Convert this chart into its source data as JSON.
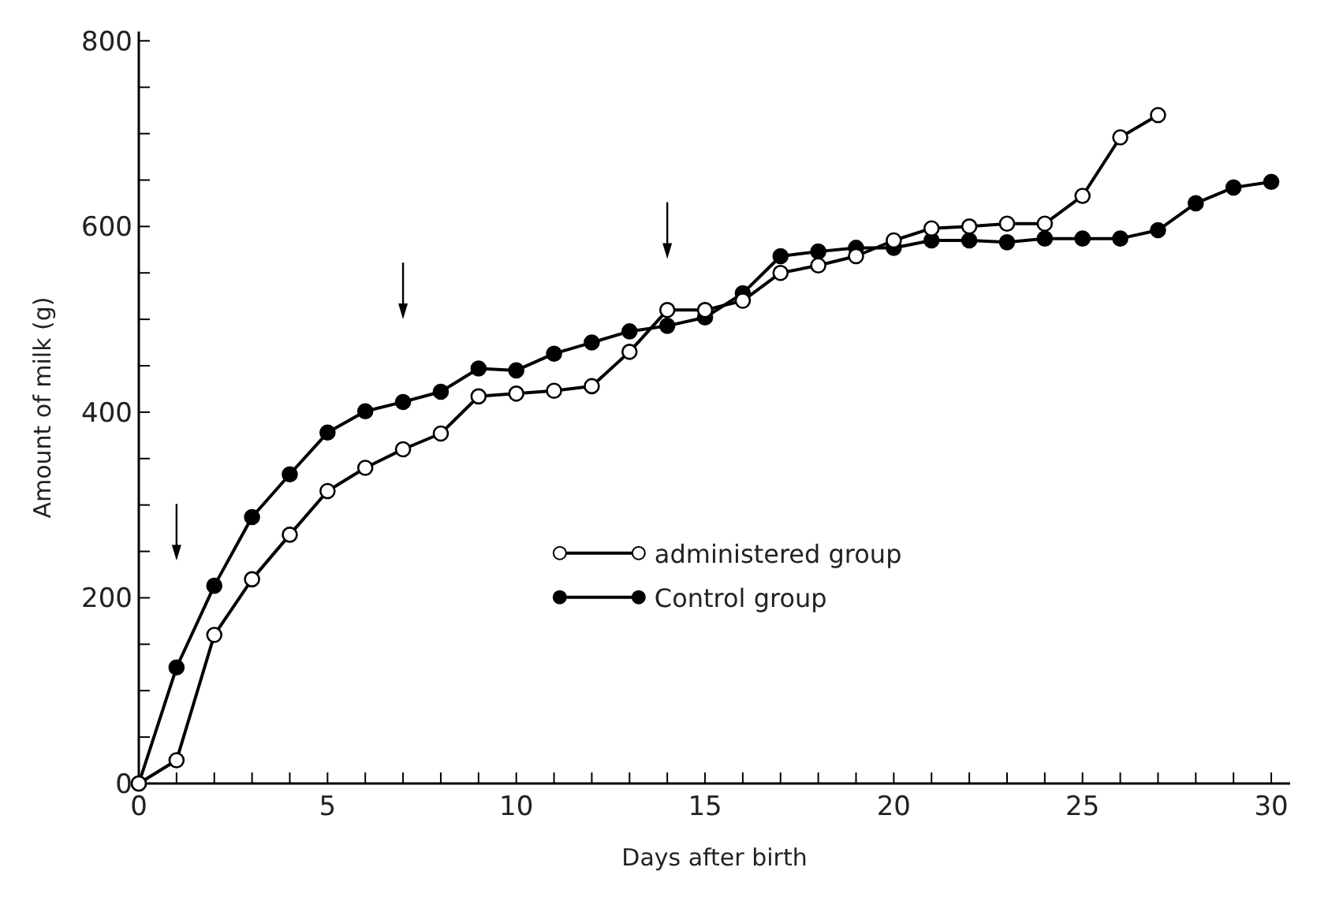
{
  "chart_data": {
    "type": "line",
    "xlabel": "Days after birth",
    "ylabel": "Amount of milk (g)",
    "x": [
      0,
      1,
      2,
      3,
      4,
      5,
      6,
      7,
      8,
      9,
      10,
      11,
      12,
      13,
      14,
      15,
      16,
      17,
      18,
      19,
      20,
      21,
      22,
      23,
      24,
      25,
      26,
      27,
      28,
      29,
      30
    ],
    "series": [
      {
        "name": "administered group",
        "color": "#ffffff",
        "x": [
          0,
          1,
          2,
          3,
          4,
          5,
          6,
          7,
          8,
          9,
          10,
          11,
          12,
          13,
          14,
          15,
          16,
          17,
          18,
          19,
          20,
          21,
          22,
          23,
          24,
          25,
          26,
          27
        ],
        "values": [
          0,
          25,
          160,
          220,
          268,
          315,
          340,
          360,
          377,
          417,
          420,
          423,
          428,
          465,
          510,
          510,
          520,
          550,
          558,
          568,
          585,
          598,
          600,
          603,
          603,
          633,
          696,
          720
        ]
      },
      {
        "name": "Control group",
        "color": "#000000",
        "values": [
          0,
          125,
          213,
          287,
          333,
          378,
          401,
          411,
          422,
          447,
          445,
          463,
          475,
          487,
          493,
          502,
          528,
          568,
          573,
          577,
          577,
          585,
          585,
          583,
          587,
          587,
          587,
          596,
          625,
          642,
          648
        ]
      }
    ],
    "xlim": [
      0,
      30.5
    ],
    "ylim": [
      0,
      810
    ],
    "xticks": [
      0,
      {
        "value": 1,
        "label": null
      },
      {
        "value": 2,
        "label": null
      },
      {
        "value": 3,
        "label": null
      },
      {
        "value": 4,
        "label": null
      },
      5,
      {
        "value": 6,
        "label": null
      },
      {
        "value": 7,
        "label": null
      },
      {
        "value": 8,
        "label": null
      },
      {
        "value": 9,
        "label": null
      },
      10,
      {
        "value": 11,
        "label": null
      },
      {
        "value": 12,
        "label": null
      },
      {
        "value": 13,
        "label": null
      },
      {
        "value": 14,
        "label": null
      },
      15,
      {
        "value": 16,
        "label": null
      },
      {
        "value": 17,
        "label": null
      },
      {
        "value": 18,
        "label": null
      },
      {
        "value": 19,
        "label": null
      },
      20,
      {
        "value": 21,
        "label": null
      },
      {
        "value": 22,
        "label": null
      },
      {
        "value": 23,
        "label": null
      },
      {
        "value": 24,
        "label": null
      },
      25,
      {
        "value": 26,
        "label": null
      },
      {
        "value": 27,
        "label": null
      },
      {
        "value": 28,
        "label": null
      },
      {
        "value": 29,
        "label": null
      },
      30
    ],
    "yticks": [
      0,
      {
        "value": 50,
        "label": null
      },
      {
        "value": 100,
        "label": null
      },
      {
        "value": 150,
        "label": null
      },
      200,
      {
        "value": 250,
        "label": null
      },
      {
        "value": 300,
        "label": null
      },
      {
        "value": 350,
        "label": null
      },
      400,
      {
        "value": 450,
        "label": null
      },
      {
        "value": 500,
        "label": null
      },
      {
        "value": 550,
        "label": null
      },
      600,
      {
        "value": 650,
        "label": null
      },
      {
        "value": 700,
        "label": null
      },
      {
        "value": 750,
        "label": null
      },
      800
    ],
    "marker": "circle",
    "line_style": "solid",
    "grid": false,
    "legend": "center"
  }
}
